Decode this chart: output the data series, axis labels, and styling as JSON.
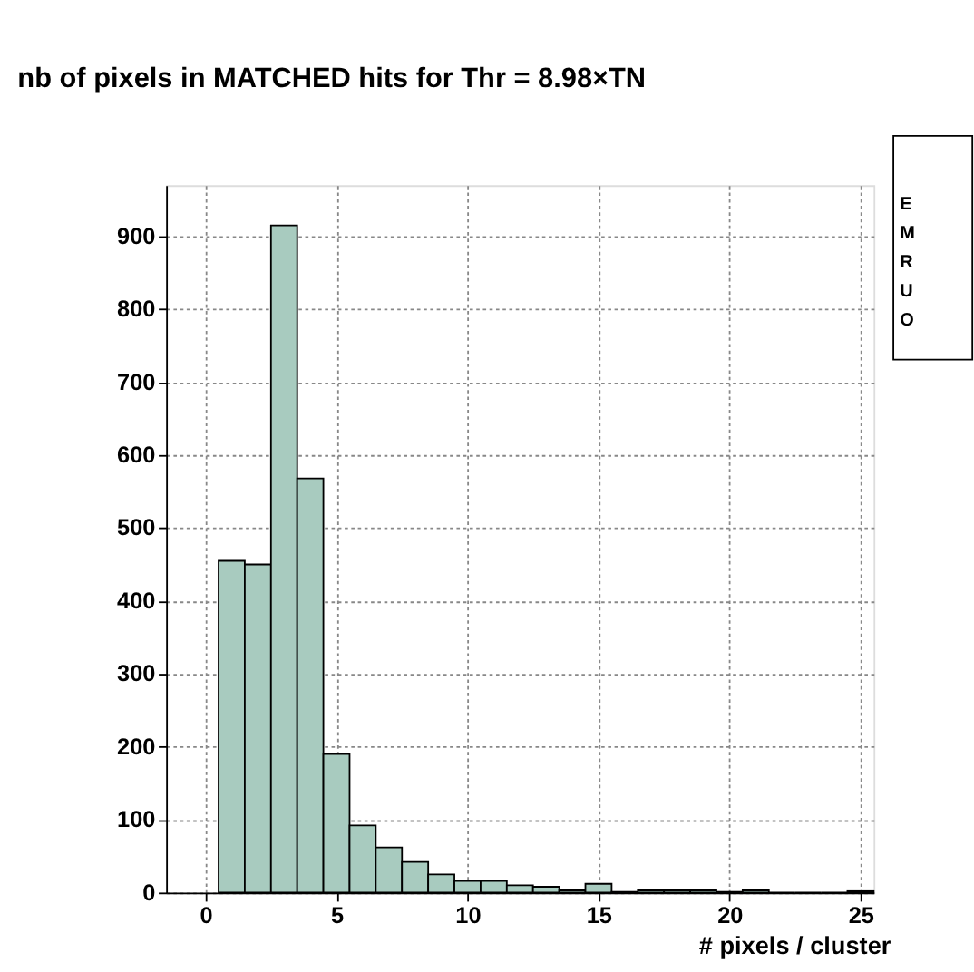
{
  "chart_data": {
    "type": "histogram",
    "title": "nb of pixels in MATCHED hits for Thr = 8.98×TN",
    "xlabel": "# pixels / cluster",
    "bins": [
      0.5,
      1.5,
      2.5,
      3.5,
      4.5,
      5.5,
      6.5,
      7.5,
      8.5,
      9.5,
      10.5,
      11.5,
      12.5,
      13.5,
      14.5,
      15.5,
      16.5,
      17.5,
      18.5,
      19.5,
      20.5,
      21.5,
      22.5,
      23.5,
      24.5,
      25.5
    ],
    "values": [
      455,
      450,
      915,
      568,
      190,
      92,
      62,
      42,
      25,
      16,
      16,
      10,
      8,
      3,
      12,
      1,
      3,
      3,
      3,
      1,
      3,
      0,
      0,
      0,
      2
    ],
    "color": "#a8cbbf",
    "xlim": [
      -1.5,
      25.5
    ],
    "xticks": [
      0,
      5,
      10,
      15,
      20,
      25
    ],
    "ylim": [
      0,
      970
    ],
    "yticks": [
      0,
      100,
      200,
      300,
      400,
      500,
      600,
      700,
      800,
      900
    ],
    "grid": true,
    "annotations": [
      "E",
      "M",
      "R",
      "U",
      "O"
    ]
  }
}
